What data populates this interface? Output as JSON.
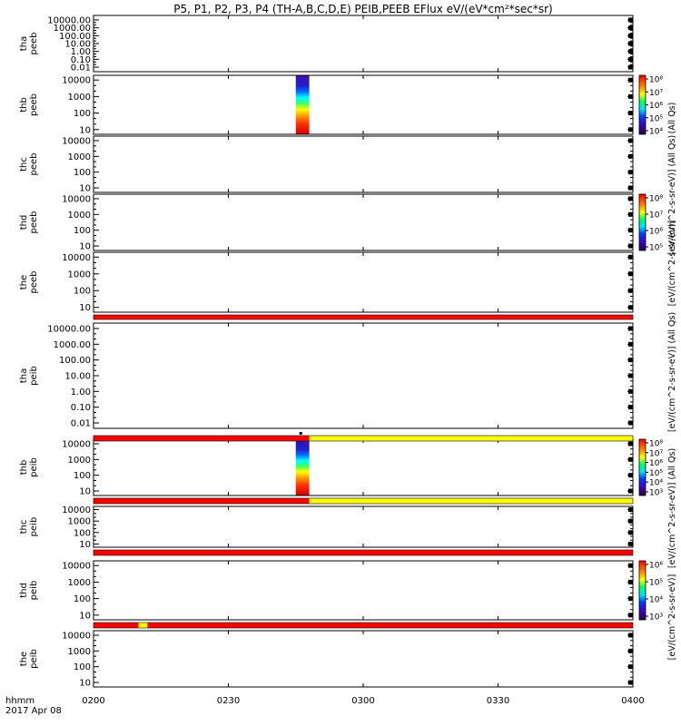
{
  "title": "P5, P1, P2, P3, P4 (TH-A,B,C,D,E) PEIB,PEEB EFlux eV/(eV*cm²*sec*sr)",
  "bottom_label": "hhmm",
  "date_label": "2017 Apr 08",
  "colors": {
    "red": "#ff0000",
    "yellow": "#ffff00",
    "frame": "#000000"
  },
  "chart_data": {
    "type": "heatmap",
    "x": {
      "ticks": [
        "0200",
        "0230",
        "0300",
        "0330",
        "0400"
      ]
    },
    "panels": [
      {
        "name": "tha peeb",
        "ylabel": [
          "tha",
          "peeb"
        ],
        "yticks": [
          "10000.00",
          "1000.00",
          "100.00",
          "10.00",
          "1.00",
          "0.10",
          "0.01"
        ],
        "data_band": null
      },
      {
        "name": "thb peeb",
        "ylabel": [
          "thb",
          "peeb"
        ],
        "yticks": [
          "10000",
          "1000",
          "100",
          "10"
        ],
        "data_band": {
          "start": "0245",
          "end": "0248"
        }
      },
      {
        "name": "thc peeb",
        "ylabel": [
          "thc",
          "peeb"
        ],
        "yticks": [
          "10000",
          "1000",
          "100",
          "10"
        ],
        "data_band": null
      },
      {
        "name": "thd peeb",
        "ylabel": [
          "thd",
          "peeb"
        ],
        "yticks": [
          "10000",
          "1000",
          "100",
          "10"
        ],
        "data_band": null
      },
      {
        "name": "the peeb",
        "ylabel": [
          "the",
          "peeb"
        ],
        "yticks": [
          "10000",
          "1000",
          "100",
          "10"
        ],
        "data_band": null
      },
      {
        "name": "tha peib",
        "ylabel": [
          "tha",
          "peib"
        ],
        "yticks": [
          "10000.00",
          "1000.00",
          "100.00",
          "10.00",
          "1.00",
          "0.10",
          "0.01"
        ],
        "data_band": null
      },
      {
        "name": "thb peib",
        "ylabel": [
          "thb",
          "peib"
        ],
        "yticks": [
          "10000",
          "1000",
          "100",
          "10"
        ],
        "data_band": {
          "start": "0245",
          "end": "0248"
        }
      },
      {
        "name": "thc peib",
        "ylabel": [
          "thc",
          "peib"
        ],
        "yticks": [
          "10000",
          "1000",
          "100",
          "10"
        ],
        "data_band": null
      },
      {
        "name": "thd peib",
        "ylabel": [
          "thd",
          "peib"
        ],
        "yticks": [
          "10000",
          "1000",
          "100",
          "10"
        ],
        "data_band": null
      },
      {
        "name": "the peib",
        "ylabel": [
          "the",
          "peib"
        ],
        "yticks": [
          "10000",
          "1000",
          "100",
          "10"
        ],
        "data_band": null
      }
    ],
    "flag_bars": [
      {
        "after_panel": 4,
        "segments": [
          {
            "start": "0200",
            "end": "0400",
            "color": "red"
          }
        ]
      },
      {
        "after_panel": 5,
        "segments": [
          {
            "start": "0200",
            "end": "0248",
            "color": "red"
          },
          {
            "start": "0248",
            "end": "0400",
            "color": "yellow"
          }
        ]
      },
      {
        "after_panel": 6,
        "segments": [
          {
            "start": "0200",
            "end": "0248",
            "color": "red"
          },
          {
            "start": "0248",
            "end": "0400",
            "color": "yellow"
          }
        ]
      },
      {
        "after_panel": 7,
        "segments": [
          {
            "start": "0200",
            "end": "0400",
            "color": "red"
          }
        ]
      },
      {
        "after_panel": 8,
        "segments": [
          {
            "start": "0200",
            "end": "0210",
            "color": "red"
          },
          {
            "start": "0210",
            "end": "0212",
            "color": "yellow"
          },
          {
            "start": "0212",
            "end": "0400",
            "color": "red"
          }
        ]
      }
    ],
    "colorbars": [
      {
        "panel": 1,
        "ticks": [
          "10⁸",
          "10⁷",
          "10⁶",
          "10⁵",
          "10⁴"
        ]
      },
      {
        "panel": 3,
        "ticks": [
          "10⁸",
          "10⁷",
          "10⁶",
          "10⁵"
        ]
      },
      {
        "panel": 6,
        "ticks": [
          "10⁸",
          "10⁷",
          "10⁶",
          "10⁵",
          "10⁴",
          "10³"
        ]
      },
      {
        "panel": 8,
        "ticks": [
          "10⁶",
          "10⁵",
          "10⁴",
          "10³"
        ]
      }
    ],
    "colorbar_labels": [
      "(All Qs)",
      "[eV/(cm^2-s-sr-eV)] (All Qs)",
      "[eV/(cm^2-s-sr-eV)]",
      "[eV/(cm^2-s-sr-eV)] (All Qs)",
      "[eV/(cm^2-s-sr-eV)] (All Qs)",
      "[eV/(cm^2-s-sr-eV)]"
    ]
  }
}
